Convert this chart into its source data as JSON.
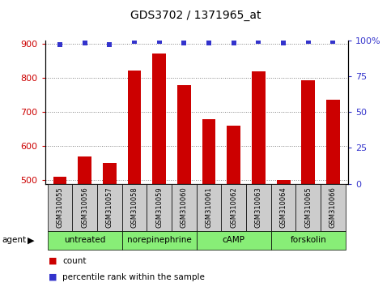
{
  "title": "GDS3702 / 1371965_at",
  "samples": [
    "GSM310055",
    "GSM310056",
    "GSM310057",
    "GSM310058",
    "GSM310059",
    "GSM310060",
    "GSM310061",
    "GSM310062",
    "GSM310063",
    "GSM310064",
    "GSM310065",
    "GSM310066"
  ],
  "counts": [
    510,
    570,
    550,
    820,
    870,
    778,
    678,
    660,
    818,
    500,
    793,
    735
  ],
  "percentile_ranks": [
    97,
    98,
    97,
    99,
    99,
    98,
    98,
    98,
    99,
    98,
    99,
    99
  ],
  "ylim_left": [
    490,
    910
  ],
  "ylim_right": [
    0,
    100
  ],
  "yticks_left": [
    500,
    600,
    700,
    800,
    900
  ],
  "yticks_right": [
    0,
    25,
    50,
    75,
    100
  ],
  "bar_color": "#cc0000",
  "dot_color": "#3333cc",
  "agent_groups": [
    {
      "label": "untreated",
      "start": 0,
      "end": 3
    },
    {
      "label": "norepinephrine",
      "start": 3,
      "end": 6
    },
    {
      "label": "cAMP",
      "start": 6,
      "end": 9
    },
    {
      "label": "forskolin",
      "start": 9,
      "end": 12
    }
  ],
  "agent_bg_color": "#88ee77",
  "sample_bg_color": "#cccccc",
  "bar_bottom": 490,
  "xlabel_color": "#cc0000",
  "ylabel_right_color": "#3333cc",
  "fig_width": 4.83,
  "fig_height": 3.54,
  "dpi": 100
}
